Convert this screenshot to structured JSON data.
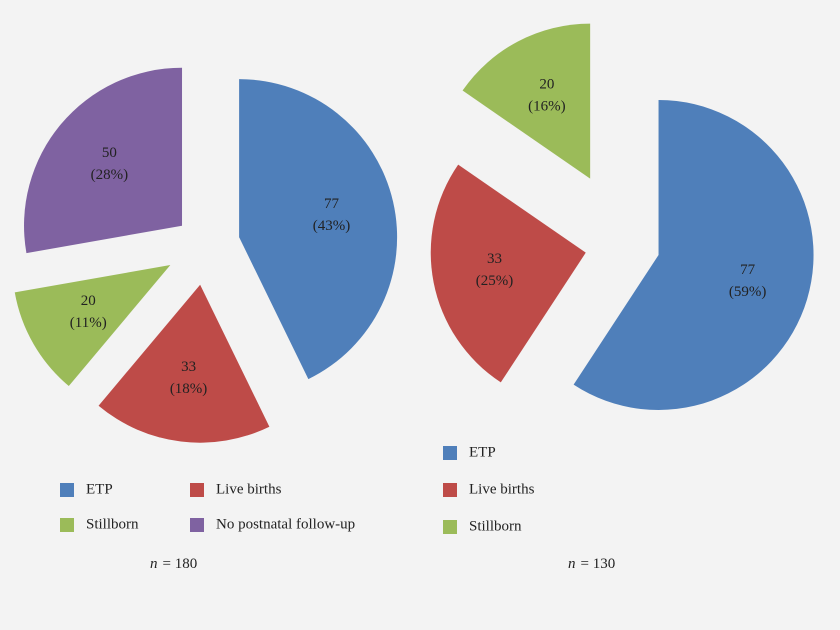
{
  "chart_data": [
    {
      "type": "pie",
      "categories": [
        "ETP",
        "Live births",
        "Stillborn",
        "No postnatal follow-up"
      ],
      "values": [
        77,
        33,
        20,
        50
      ],
      "percent_labels": [
        "(43%)",
        "(18%)",
        "(11%)",
        "(28%)"
      ],
      "colors": [
        "#4f7fba",
        "#be4b48",
        "#9bbb59",
        "#7f62a1"
      ],
      "n_symbol": "n",
      "n_text": "= 180"
    },
    {
      "type": "pie",
      "categories": [
        "ETP",
        "Live births",
        "Stillborn"
      ],
      "values": [
        77,
        33,
        20
      ],
      "percent_labels": [
        "(59%)",
        "(25%)",
        "(16%)"
      ],
      "colors": [
        "#4f7fba",
        "#be4b48",
        "#9bbb59"
      ],
      "n_symbol": "n",
      "n_text": "= 130"
    }
  ]
}
